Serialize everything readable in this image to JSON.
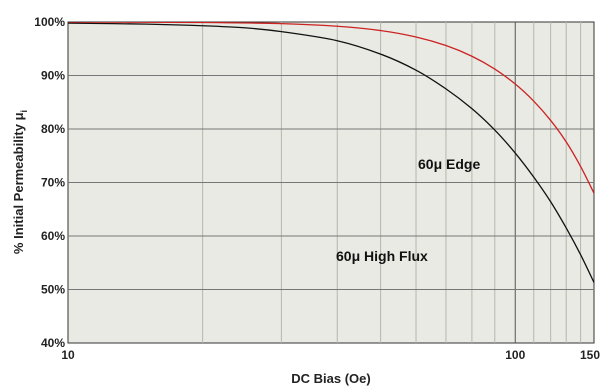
{
  "chart_data": {
    "type": "line",
    "title": "",
    "xlabel": "DC Bias (Oe)",
    "ylabel": "% Initial Permeability μ",
    "ylabel_subscript": "i",
    "x_scale": "log",
    "xlim": [
      10,
      150
    ],
    "ylim": [
      40,
      100
    ],
    "grid": true,
    "x_ticks": [
      10,
      100,
      150
    ],
    "x_tick_labels": [
      "10",
      "100",
      "150"
    ],
    "y_ticks": [
      40,
      50,
      60,
      70,
      80,
      90,
      100
    ],
    "y_tick_labels": [
      "40%",
      "50%",
      "60%",
      "70%",
      "80%",
      "90%",
      "100%"
    ],
    "series": [
      {
        "name": "60μ High Flux",
        "color": "#111111",
        "x": [
          10,
          15,
          20,
          25,
          30,
          40,
          50,
          60,
          70,
          80,
          90,
          100,
          110,
          120,
          130,
          140,
          150
        ],
        "y": [
          99.8,
          99.6,
          99.3,
          98.9,
          98.2,
          96.5,
          94.0,
          91.0,
          87.5,
          83.8,
          79.8,
          75.5,
          71.0,
          66.4,
          61.5,
          56.5,
          51.3
        ]
      },
      {
        "name": "60μ Edge",
        "color": "#cc2222",
        "x": [
          10,
          20,
          30,
          40,
          50,
          60,
          70,
          80,
          90,
          100,
          110,
          120,
          130,
          140,
          150
        ],
        "y": [
          100,
          99.9,
          99.7,
          99.2,
          98.4,
          97.2,
          95.6,
          93.6,
          91.2,
          88.4,
          85.2,
          81.6,
          77.6,
          73.0,
          68.0
        ]
      }
    ],
    "annotations": [
      {
        "text": "60μ Edge",
        "series": "60μ Edge"
      },
      {
        "text": "60μ High Flux",
        "series": "60μ High Flux"
      }
    ]
  }
}
